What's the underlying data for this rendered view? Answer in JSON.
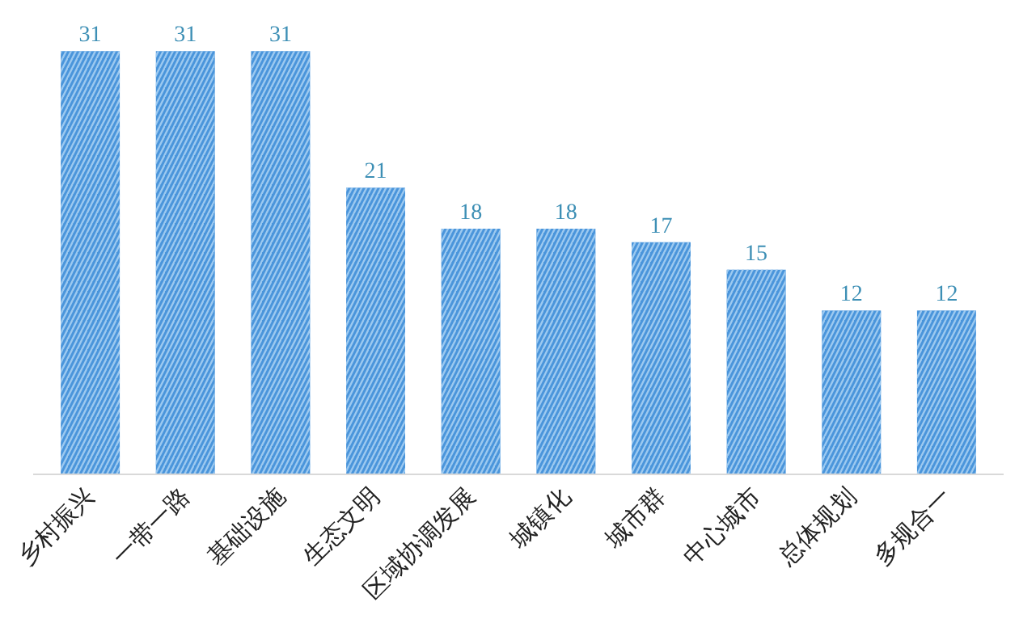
{
  "chart_data": {
    "type": "bar",
    "categories": [
      "乡村振兴",
      "一带一路",
      "基础设施",
      "生态文明",
      "区域协调发展",
      "城镇化",
      "城市群",
      "中心城市",
      "总体规划",
      "多规合一"
    ],
    "values": [
      31,
      31,
      31,
      21,
      18,
      18,
      17,
      15,
      12,
      12
    ],
    "color": "#4a95db",
    "data_labels": true,
    "tick_labels": "x",
    "grid": false
  }
}
